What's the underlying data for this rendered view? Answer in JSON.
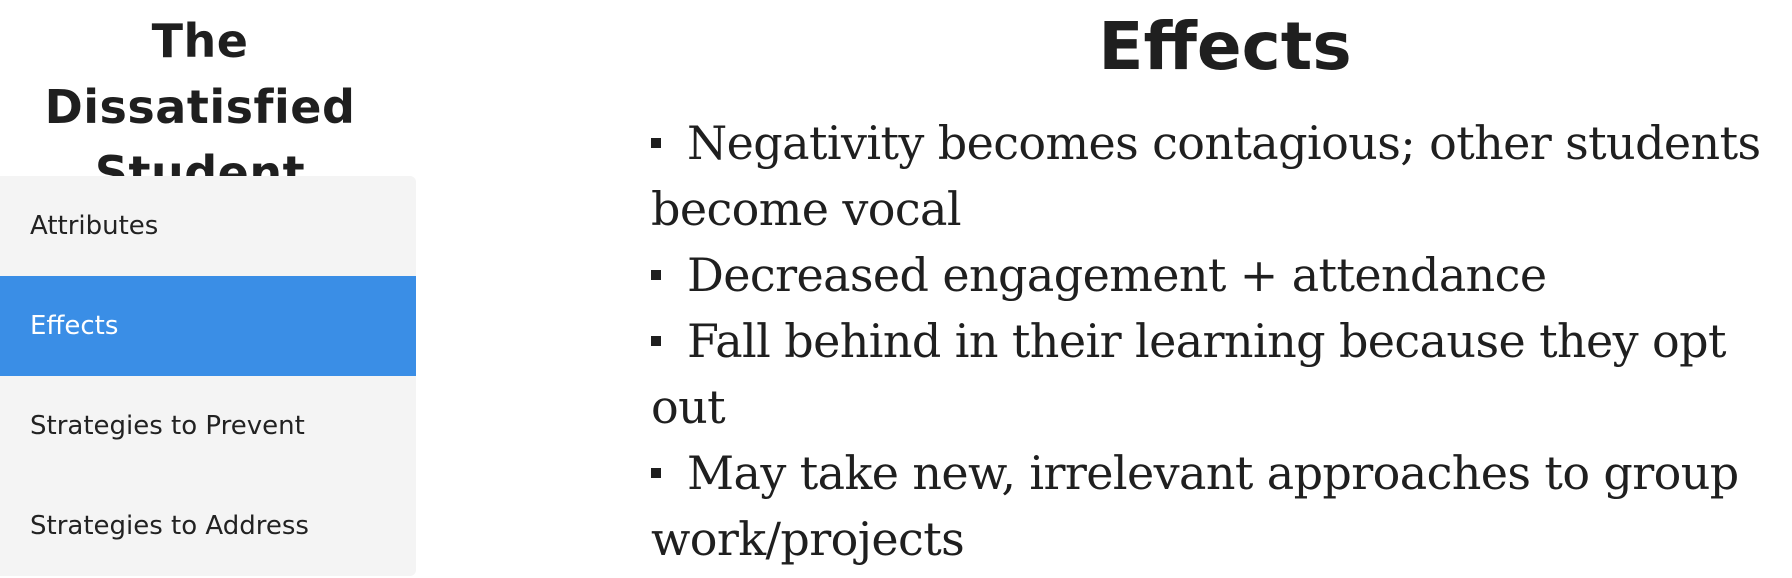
{
  "sidebar": {
    "title": "The Dissatisfied Student",
    "items": [
      {
        "label": "Attributes",
        "active": false
      },
      {
        "label": "Effects",
        "active": true
      },
      {
        "label": "Strategies to Prevent",
        "active": false
      },
      {
        "label": "Strategies to Address",
        "active": false
      }
    ]
  },
  "main": {
    "title": "Effects",
    "bullets": [
      "Negativity becomes contagious; other students become vocal",
      "Decreased engagement + attendance",
      "Fall behind in their learning because they opt out",
      "May take new, irrelevant approaches to group work/projects"
    ]
  },
  "colors": {
    "accent": "#3a8ee6",
    "nav_background": "#f4f4f4",
    "text": "#1f1f1f"
  }
}
